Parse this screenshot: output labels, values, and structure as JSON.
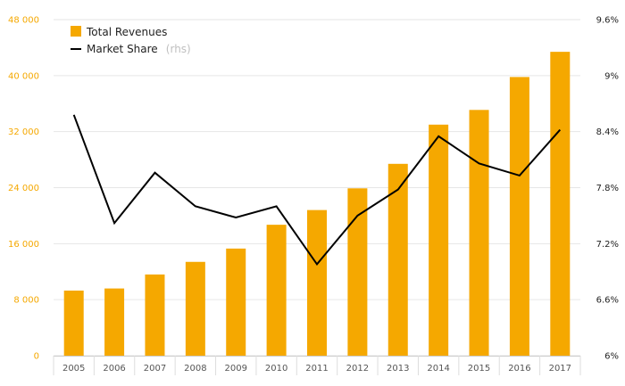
{
  "chart_data": {
    "type": "bar+line",
    "categories": [
      "2005",
      "2006",
      "2007",
      "2008",
      "2009",
      "2010",
      "2011",
      "2012",
      "2013",
      "2014",
      "2015",
      "2016",
      "2017"
    ],
    "series": [
      {
        "name": "Total Revenues",
        "type": "bar",
        "axis": "left",
        "values": [
          9300,
          9600,
          11600,
          13400,
          15300,
          18700,
          20800,
          23900,
          27400,
          33000,
          35100,
          39800,
          43400
        ]
      },
      {
        "name": "Market Share",
        "name_suffix": "(rhs)",
        "type": "line",
        "axis": "right",
        "values": [
          8.58,
          7.42,
          7.96,
          7.6,
          7.48,
          7.6,
          6.98,
          7.5,
          7.78,
          8.35,
          8.06,
          7.93,
          8.42
        ]
      }
    ],
    "y_left": {
      "ylim": [
        0,
        48000
      ],
      "ticks": [
        0,
        8000,
        16000,
        24000,
        32000,
        40000,
        48000
      ],
      "tick_labels": [
        "0",
        "8 000",
        "16 000",
        "24 000",
        "32 000",
        "40 000",
        "48 000"
      ]
    },
    "y_right": {
      "ylim": [
        6.0,
        9.6
      ],
      "ticks": [
        6.0,
        6.6,
        7.2,
        7.8,
        8.4,
        9.0,
        9.6
      ],
      "tick_labels": [
        "6%",
        "6.6%",
        "7.2%",
        "7.8%",
        "8.4%",
        "9%",
        "9.6%"
      ]
    },
    "grid": true,
    "legend_position": "top-left",
    "colors": {
      "bar": "#f5a800",
      "line": "#000000",
      "grid": "#e6e6e6",
      "left_ticks": "#f5a800",
      "right_ticks": "#222222"
    }
  }
}
